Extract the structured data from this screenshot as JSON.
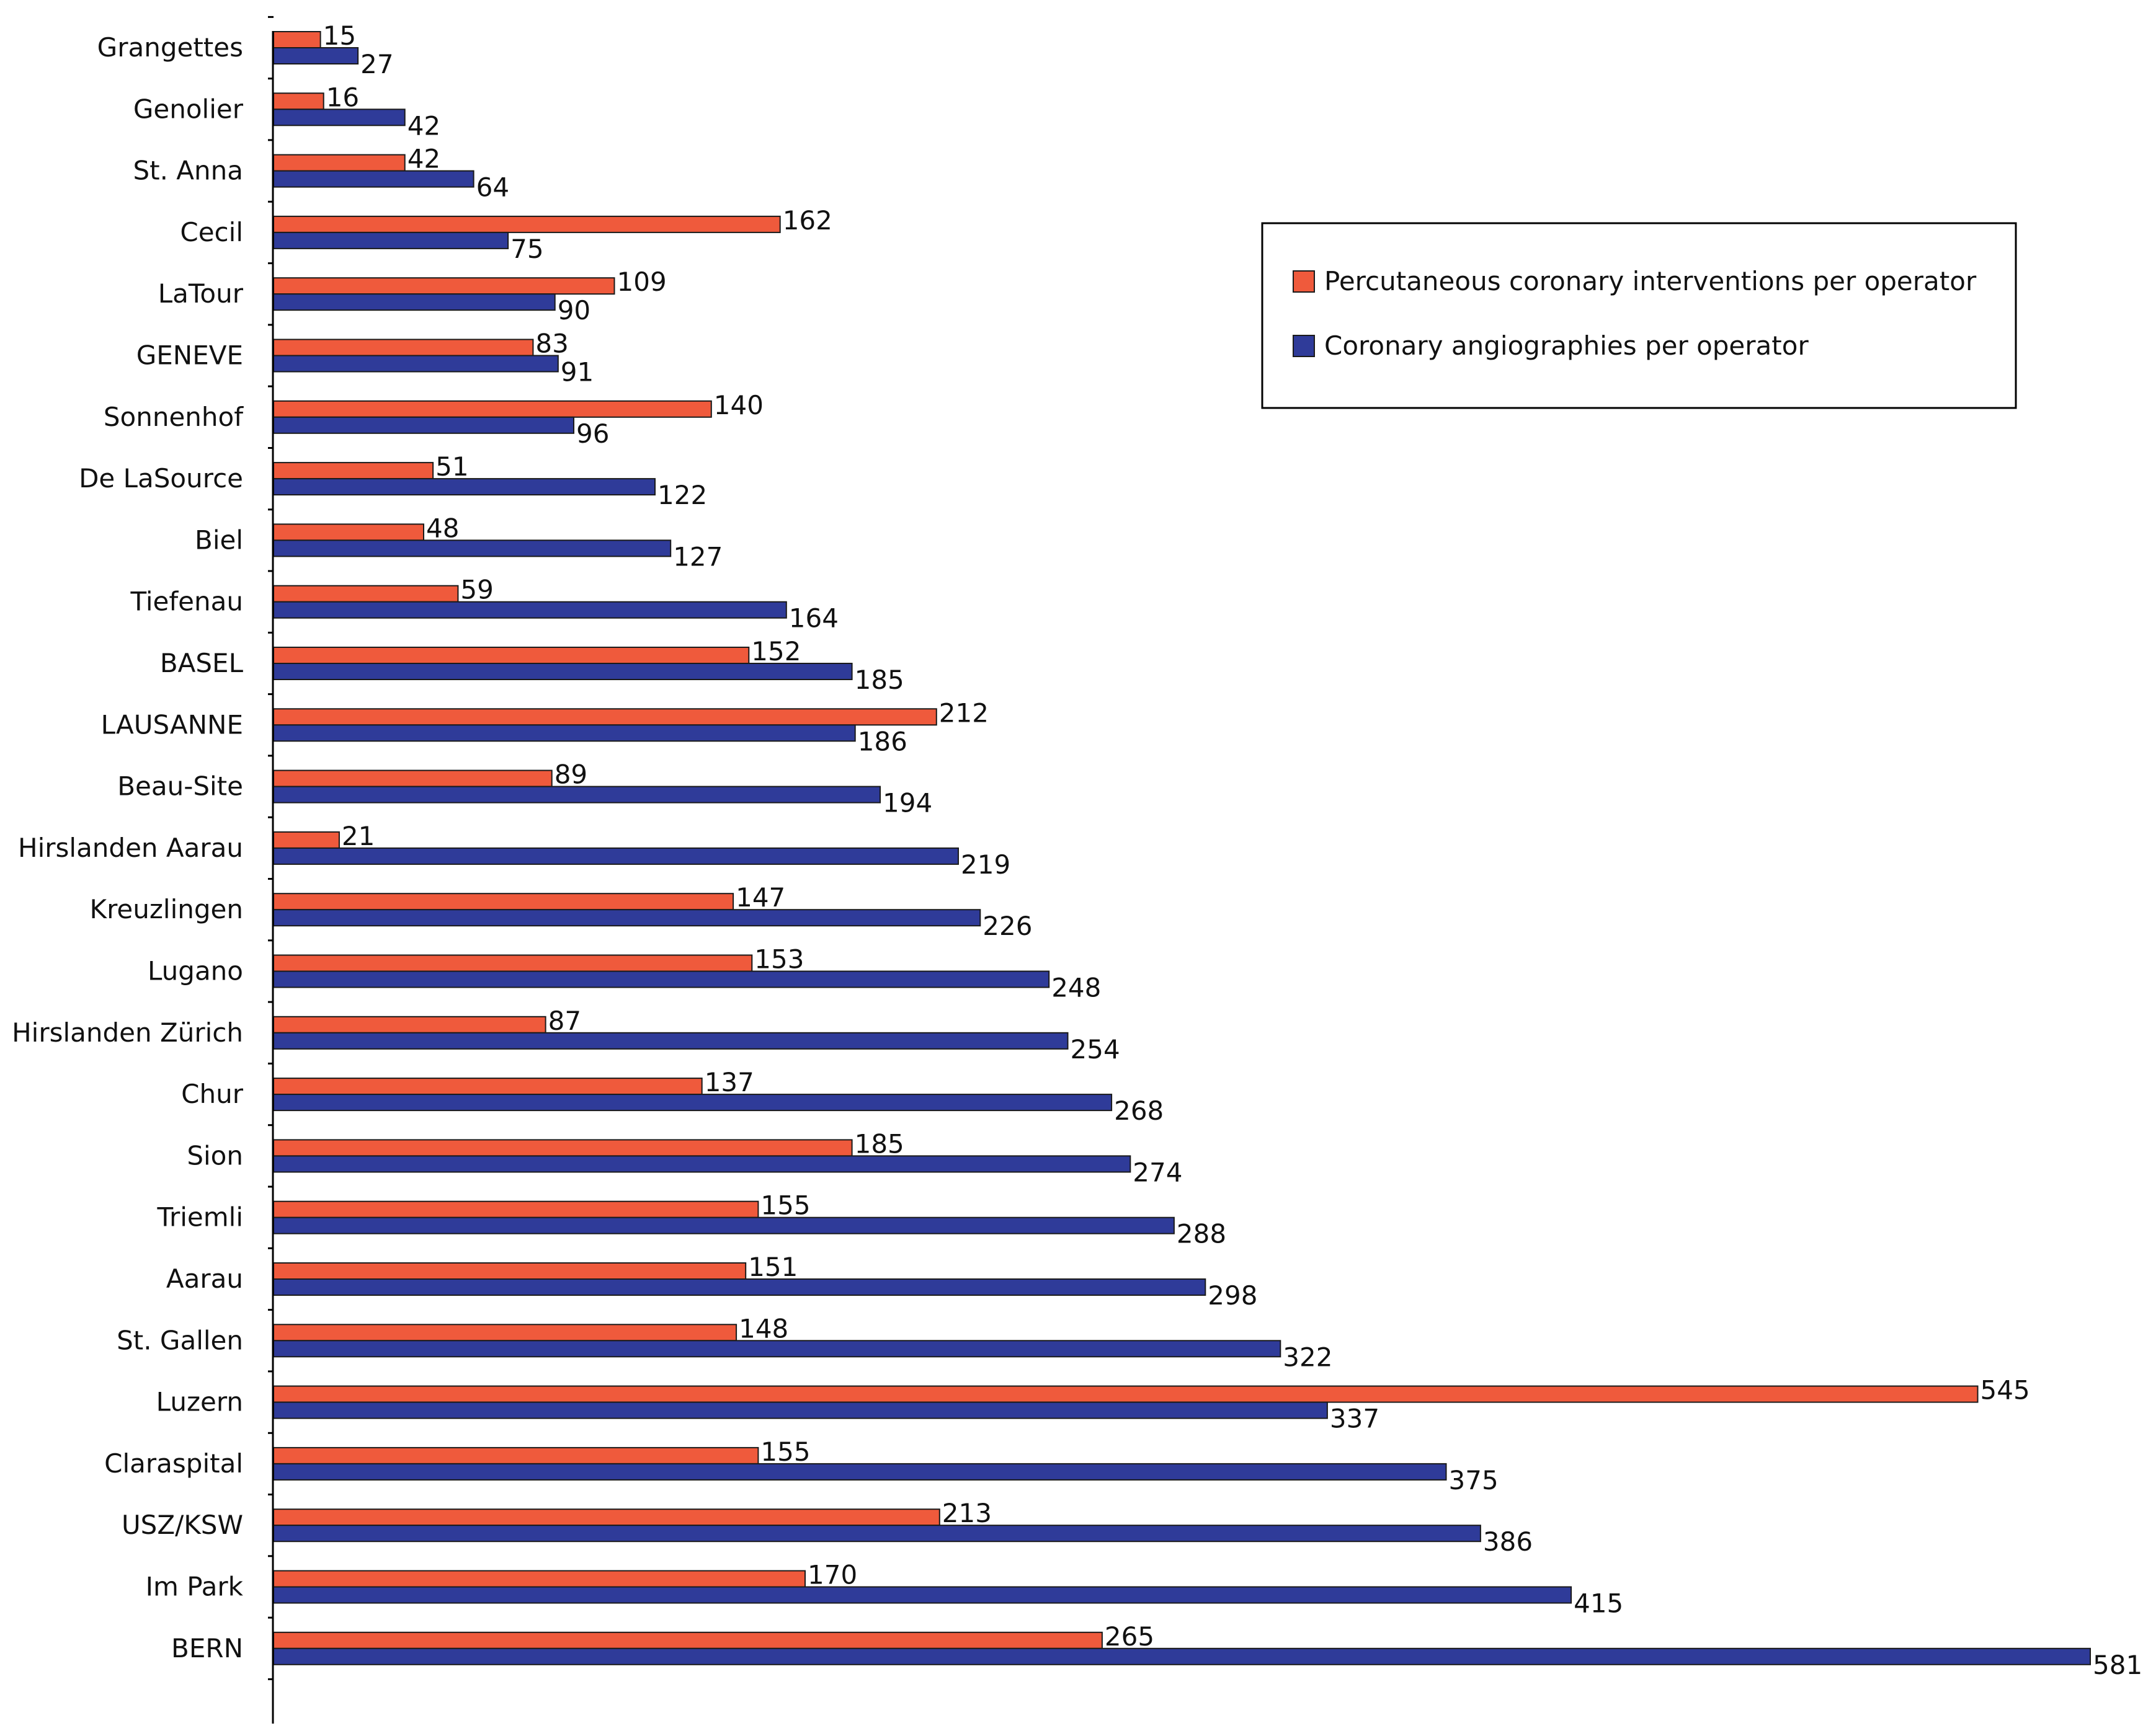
{
  "chart_data": {
    "type": "bar",
    "orientation": "horizontal",
    "title": "",
    "xlabel": "",
    "ylabel": "",
    "xlim": [
      0,
      581
    ],
    "grid": false,
    "legend_position": "top-right",
    "categories": [
      "Grangettes",
      "Genolier",
      "St. Anna",
      "Cecil",
      "LaTour",
      "GENEVE",
      "Sonnenhof",
      "De LaSource",
      "Biel",
      "Tiefenau",
      "BASEL",
      "LAUSANNE",
      "Beau-Site",
      "Hirslanden Aarau",
      "Kreuzlingen",
      "Lugano",
      "Hirslanden Zürich",
      "Chur",
      "Sion",
      "Triemli",
      "Aarau",
      "St. Gallen",
      "Luzern",
      "Claraspital",
      "USZ/KSW",
      "Im Park",
      "BERN"
    ],
    "series": [
      {
        "name": "Percutaneous coronary interventions per operator",
        "color": "#ef5a3c",
        "values": [
          15,
          16,
          42,
          162,
          109,
          83,
          140,
          51,
          48,
          59,
          152,
          212,
          89,
          21,
          147,
          153,
          87,
          137,
          185,
          155,
          151,
          148,
          545,
          155,
          213,
          170,
          265
        ]
      },
      {
        "name": "Coronary angiographies per operator",
        "color": "#2f3b99",
        "values": [
          27,
          42,
          64,
          75,
          90,
          91,
          96,
          122,
          127,
          164,
          185,
          186,
          194,
          219,
          226,
          248,
          254,
          268,
          274,
          288,
          298,
          322,
          337,
          375,
          386,
          415,
          581
        ]
      }
    ]
  }
}
